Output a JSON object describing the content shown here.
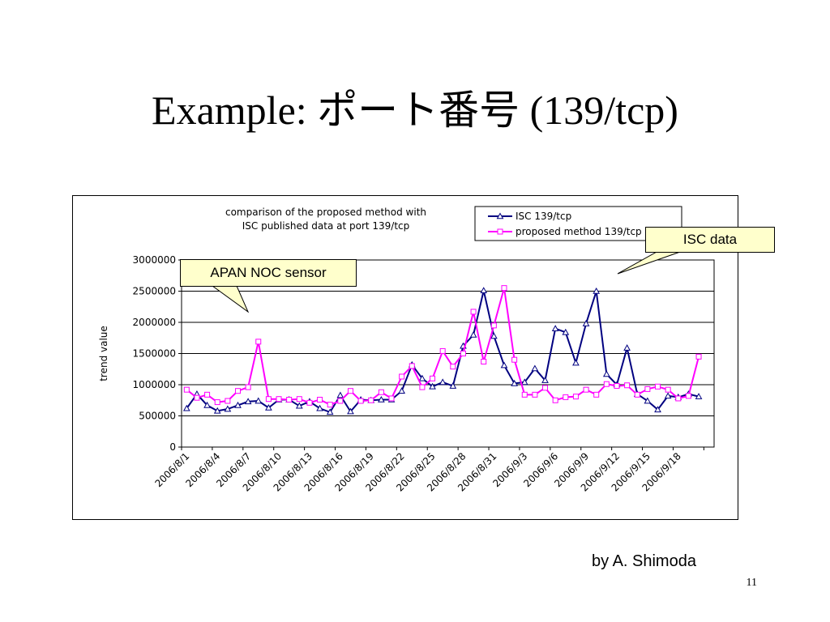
{
  "slide": {
    "title": "Example: ポート番号 (139/tcp)",
    "byline": "by A. Shimoda",
    "page_number": "11"
  },
  "callouts": {
    "apan": "APAN NOC sensor",
    "isc": "ISC data"
  },
  "colors": {
    "isc": "#000080",
    "proposed": "#ff00ff",
    "callout_fill": "#ffffcc"
  },
  "chart_data": {
    "type": "line",
    "title": "comparison of the proposed method with\nISC published data at port 139/tcp",
    "xlabel": "",
    "ylabel": "trend value",
    "ylim": [
      0,
      3000000
    ],
    "yticks": [
      0,
      500000,
      1000000,
      1500000,
      2000000,
      2500000,
      3000000
    ],
    "grid": "horizontal",
    "legend_position": "top-right",
    "x": [
      "2006/8/1",
      "2006/8/2",
      "2006/8/3",
      "2006/8/4",
      "2006/8/5",
      "2006/8/6",
      "2006/8/7",
      "2006/8/8",
      "2006/8/9",
      "2006/8/10",
      "2006/8/11",
      "2006/8/12",
      "2006/8/13",
      "2006/8/14",
      "2006/8/15",
      "2006/8/16",
      "2006/8/17",
      "2006/8/18",
      "2006/8/19",
      "2006/8/20",
      "2006/8/21",
      "2006/8/22",
      "2006/8/23",
      "2006/8/24",
      "2006/8/25",
      "2006/8/26",
      "2006/8/27",
      "2006/8/28",
      "2006/8/29",
      "2006/8/30",
      "2006/8/31",
      "2006/9/1",
      "2006/9/2",
      "2006/9/3",
      "2006/9/4",
      "2006/9/5",
      "2006/9/6",
      "2006/9/7",
      "2006/9/8",
      "2006/9/9",
      "2006/9/10",
      "2006/9/11",
      "2006/9/12",
      "2006/9/13",
      "2006/9/14",
      "2006/9/15",
      "2006/9/16",
      "2006/9/17",
      "2006/9/18",
      "2006/9/19",
      "2006/9/20",
      "2006/9/21"
    ],
    "tick_labels": [
      "2006/8/1",
      "2006/8/4",
      "2006/8/7",
      "2006/8/10",
      "2006/8/13",
      "2006/8/16",
      "2006/8/19",
      "2006/8/22",
      "2006/8/25",
      "2006/8/28",
      "2006/8/31",
      "2006/9/3",
      "2006/9/6",
      "2006/9/9",
      "2006/9/12",
      "2006/9/15",
      "2006/9/18"
    ],
    "series": [
      {
        "name": "ISC 139/tcp",
        "color": "#000080",
        "marker": "triangle",
        "values": [
          620000,
          850000,
          670000,
          580000,
          610000,
          670000,
          730000,
          740000,
          630000,
          760000,
          760000,
          660000,
          730000,
          620000,
          560000,
          830000,
          570000,
          760000,
          750000,
          760000,
          760000,
          900000,
          1320000,
          1100000,
          970000,
          1040000,
          980000,
          1620000,
          1800000,
          2510000,
          1780000,
          1310000,
          1020000,
          1040000,
          1260000,
          1070000,
          1900000,
          1840000,
          1350000,
          1980000,
          2500000,
          1170000,
          1000000,
          1590000,
          850000,
          740000,
          600000,
          820000,
          800000,
          850000,
          810000,
          null
        ]
      },
      {
        "name": "proposed method 139/tcp",
        "color": "#ff00ff",
        "marker": "square",
        "values": [
          920000,
          790000,
          840000,
          720000,
          740000,
          900000,
          960000,
          1690000,
          770000,
          770000,
          760000,
          770000,
          710000,
          760000,
          680000,
          740000,
          900000,
          740000,
          750000,
          880000,
          780000,
          1130000,
          1300000,
          960000,
          1100000,
          1540000,
          1290000,
          1500000,
          2170000,
          1370000,
          1950000,
          2550000,
          1400000,
          840000,
          840000,
          950000,
          750000,
          800000,
          810000,
          920000,
          840000,
          1010000,
          980000,
          990000,
          840000,
          930000,
          970000,
          920000,
          780000,
          820000,
          1450000,
          null
        ]
      }
    ]
  }
}
